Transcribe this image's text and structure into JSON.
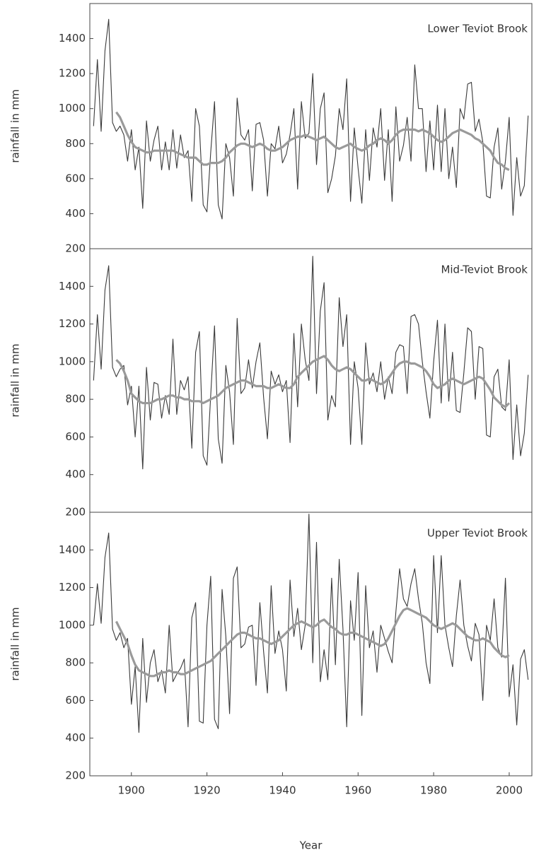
{
  "chart_data": [
    {
      "type": "line",
      "title": "Lower Teviot Brook",
      "ylabel": "rainfall in mm",
      "x": [
        1890,
        1891,
        1892,
        1893,
        1894,
        1895,
        1896,
        1897,
        1898,
        1899,
        1900,
        1901,
        1902,
        1903,
        1904,
        1905,
        1906,
        1907,
        1908,
        1909,
        1910,
        1911,
        1912,
        1913,
        1914,
        1915,
        1916,
        1917,
        1918,
        1919,
        1920,
        1921,
        1922,
        1923,
        1924,
        1925,
        1926,
        1927,
        1928,
        1929,
        1930,
        1931,
        1932,
        1933,
        1934,
        1935,
        1936,
        1937,
        1938,
        1939,
        1940,
        1941,
        1942,
        1943,
        1944,
        1945,
        1946,
        1947,
        1948,
        1949,
        1950,
        1951,
        1952,
        1953,
        1954,
        1955,
        1956,
        1957,
        1958,
        1959,
        1960,
        1961,
        1962,
        1963,
        1964,
        1965,
        1966,
        1967,
        1968,
        1969,
        1970,
        1971,
        1972,
        1973,
        1974,
        1975,
        1976,
        1977,
        1978,
        1979,
        1980,
        1981,
        1982,
        1983,
        1984,
        1985,
        1986,
        1987,
        1988,
        1989,
        1990,
        1991,
        1992,
        1993,
        1994,
        1995,
        1996,
        1997,
        1998,
        1999,
        2000,
        2001,
        2002,
        2003,
        2004,
        2005
      ],
      "series": [
        {
          "color": "#3a3a3a",
          "values": [
            900,
            1280,
            870,
            1330,
            1510,
            920,
            870,
            900,
            850,
            700,
            880,
            650,
            780,
            430,
            930,
            700,
            820,
            900,
            650,
            810,
            650,
            880,
            660,
            850,
            720,
            760,
            470,
            1000,
            900,
            450,
            410,
            750,
            1040,
            450,
            370,
            800,
            720,
            500,
            1060,
            850,
            820,
            880,
            530,
            910,
            920,
            820,
            500,
            800,
            770,
            900,
            690,
            740,
            850,
            1000,
            540,
            1040,
            830,
            860,
            1200,
            680,
            1000,
            1090,
            520,
            600,
            730,
            1000,
            880,
            1170,
            470,
            890,
            660,
            460,
            880,
            590,
            890,
            780,
            1000,
            590,
            880,
            470,
            1010,
            700,
            790,
            950,
            700,
            1250,
            1000,
            1000,
            640,
            930,
            650,
            1020,
            640,
            1000,
            600,
            780,
            550,
            1000,
            940,
            1140,
            1150,
            870,
            940,
            810,
            500,
            490,
            780,
            890,
            540,
            700,
            950,
            390,
            720,
            500,
            560,
            960
          ]
        },
        {
          "color": "#9a9a9a",
          "values": [
            null,
            null,
            null,
            null,
            null,
            null,
            980,
            950,
            900,
            850,
            810,
            780,
            770,
            760,
            750,
            750,
            760,
            760,
            760,
            760,
            760,
            760,
            750,
            740,
            730,
            720,
            720,
            720,
            700,
            680,
            680,
            690,
            690,
            690,
            700,
            720,
            750,
            770,
            790,
            800,
            800,
            790,
            780,
            790,
            800,
            790,
            770,
            760,
            760,
            770,
            780,
            800,
            820,
            830,
            840,
            840,
            850,
            840,
            830,
            820,
            830,
            840,
            820,
            800,
            780,
            770,
            780,
            790,
            800,
            780,
            770,
            760,
            770,
            790,
            800,
            820,
            830,
            820,
            800,
            820,
            850,
            870,
            880,
            880,
            880,
            880,
            870,
            880,
            870,
            860,
            840,
            820,
            810,
            820,
            840,
            860,
            870,
            880,
            870,
            860,
            850,
            830,
            820,
            800,
            780,
            760,
            720,
            690,
            680,
            660,
            650,
            null,
            null,
            null,
            null,
            null
          ]
        }
      ],
      "xlim": [
        1889,
        2006
      ],
      "ylim": [
        200,
        1600
      ],
      "yticks": [
        200,
        400,
        600,
        800,
        1000,
        1200,
        1400
      ]
    },
    {
      "type": "line",
      "title": "Mid-Teviot Brook",
      "ylabel": "rainfall in mm",
      "x": [
        1890,
        1891,
        1892,
        1893,
        1894,
        1895,
        1896,
        1897,
        1898,
        1899,
        1900,
        1901,
        1902,
        1903,
        1904,
        1905,
        1906,
        1907,
        1908,
        1909,
        1910,
        1911,
        1912,
        1913,
        1914,
        1915,
        1916,
        1917,
        1918,
        1919,
        1920,
        1921,
        1922,
        1923,
        1924,
        1925,
        1926,
        1927,
        1928,
        1929,
        1930,
        1931,
        1932,
        1933,
        1934,
        1935,
        1936,
        1937,
        1938,
        1939,
        1940,
        1941,
        1942,
        1943,
        1944,
        1945,
        1946,
        1947,
        1948,
        1949,
        1950,
        1951,
        1952,
        1953,
        1954,
        1955,
        1956,
        1957,
        1958,
        1959,
        1960,
        1961,
        1962,
        1963,
        1964,
        1965,
        1966,
        1967,
        1968,
        1969,
        1970,
        1971,
        1972,
        1973,
        1974,
        1975,
        1976,
        1977,
        1978,
        1979,
        1980,
        1981,
        1982,
        1983,
        1984,
        1985,
        1986,
        1987,
        1988,
        1989,
        1990,
        1991,
        1992,
        1993,
        1994,
        1995,
        1996,
        1997,
        1998,
        1999,
        2000,
        2001,
        2002,
        2003,
        2004,
        2005
      ],
      "series": [
        {
          "color": "#3a3a3a",
          "values": [
            900,
            1250,
            960,
            1380,
            1510,
            970,
            920,
            960,
            980,
            770,
            870,
            600,
            870,
            430,
            970,
            690,
            890,
            880,
            700,
            820,
            720,
            1120,
            720,
            900,
            850,
            920,
            540,
            1050,
            1160,
            500,
            450,
            820,
            1190,
            590,
            460,
            980,
            840,
            560,
            1230,
            830,
            860,
            1010,
            860,
            1000,
            1100,
            810,
            590,
            950,
            880,
            930,
            840,
            900,
            570,
            1150,
            760,
            1200,
            1010,
            900,
            1560,
            830,
            1270,
            1420,
            690,
            820,
            760,
            1340,
            1080,
            1250,
            560,
            1000,
            860,
            560,
            1100,
            880,
            940,
            840,
            1000,
            800,
            920,
            830,
            1050,
            1090,
            1080,
            830,
            1240,
            1250,
            1200,
            1000,
            840,
            700,
            1000,
            1220,
            780,
            1200,
            790,
            1050,
            740,
            730,
            940,
            1180,
            1160,
            800,
            1080,
            1070,
            610,
            600,
            920,
            960,
            760,
            740,
            1010,
            480,
            770,
            500,
            620,
            930
          ]
        },
        {
          "color": "#9a9a9a",
          "values": [
            null,
            null,
            null,
            null,
            null,
            null,
            1010,
            990,
            950,
            900,
            830,
            810,
            790,
            780,
            780,
            780,
            790,
            800,
            800,
            810,
            820,
            820,
            810,
            810,
            800,
            800,
            790,
            790,
            790,
            780,
            790,
            800,
            810,
            820,
            840,
            860,
            870,
            880,
            890,
            900,
            900,
            890,
            880,
            870,
            870,
            870,
            860,
            860,
            870,
            880,
            870,
            860,
            860,
            880,
            920,
            940,
            960,
            980,
            1000,
            1010,
            1020,
            1030,
            1010,
            980,
            960,
            950,
            960,
            970,
            960,
            940,
            920,
            900,
            900,
            910,
            900,
            890,
            880,
            890,
            910,
            940,
            970,
            990,
            1000,
            1000,
            990,
            990,
            980,
            970,
            950,
            920,
            880,
            860,
            870,
            880,
            900,
            910,
            900,
            890,
            880,
            890,
            900,
            910,
            920,
            910,
            880,
            850,
            810,
            790,
            770,
            760,
            780,
            null,
            null,
            null,
            null,
            null
          ]
        }
      ],
      "xlim": [
        1889,
        2006
      ],
      "ylim": [
        200,
        1600
      ],
      "yticks": [
        200,
        400,
        600,
        800,
        1000,
        1200,
        1400
      ]
    },
    {
      "type": "line",
      "title": "Upper Teviot Brook",
      "ylabel": "rainfall in mm",
      "xlabel": "Year",
      "x": [
        1890,
        1891,
        1892,
        1893,
        1894,
        1895,
        1896,
        1897,
        1898,
        1899,
        1900,
        1901,
        1902,
        1903,
        1904,
        1905,
        1906,
        1907,
        1908,
        1909,
        1910,
        1911,
        1912,
        1913,
        1914,
        1915,
        1916,
        1917,
        1918,
        1919,
        1920,
        1921,
        1922,
        1923,
        1924,
        1925,
        1926,
        1927,
        1928,
        1929,
        1930,
        1931,
        1932,
        1933,
        1934,
        1935,
        1936,
        1937,
        1938,
        1939,
        1940,
        1941,
        1942,
        1943,
        1944,
        1945,
        1946,
        1947,
        1948,
        1949,
        1950,
        1951,
        1952,
        1953,
        1954,
        1955,
        1956,
        1957,
        1958,
        1959,
        1960,
        1961,
        1962,
        1963,
        1964,
        1965,
        1966,
        1967,
        1968,
        1969,
        1970,
        1971,
        1972,
        1973,
        1974,
        1975,
        1976,
        1977,
        1978,
        1979,
        1980,
        1981,
        1982,
        1983,
        1984,
        1985,
        1986,
        1987,
        1988,
        1989,
        1990,
        1991,
        1992,
        1993,
        1994,
        1995,
        1996,
        1997,
        1998,
        1999,
        2000,
        2001,
        2002,
        2003,
        2004,
        2005
      ],
      "series": [
        {
          "color": "#3a3a3a",
          "values": [
            1000,
            1220,
            1010,
            1360,
            1490,
            980,
            920,
            960,
            880,
            930,
            580,
            780,
            430,
            930,
            590,
            800,
            870,
            700,
            760,
            640,
            1000,
            700,
            740,
            770,
            820,
            460,
            1040,
            1120,
            490,
            480,
            1000,
            1260,
            500,
            450,
            1190,
            940,
            530,
            1250,
            1310,
            880,
            900,
            990,
            1000,
            680,
            1120,
            860,
            640,
            1210,
            850,
            970,
            870,
            650,
            1240,
            940,
            1090,
            870,
            1000,
            1590,
            800,
            1440,
            700,
            870,
            710,
            1250,
            790,
            1350,
            980,
            460,
            1130,
            920,
            1280,
            520,
            1210,
            880,
            970,
            750,
            1000,
            930,
            860,
            800,
            1070,
            1300,
            1140,
            1100,
            1220,
            1300,
            1140,
            1010,
            800,
            690,
            1370,
            960,
            1370,
            1000,
            880,
            780,
            1050,
            1240,
            1000,
            890,
            810,
            1010,
            950,
            600,
            1000,
            920,
            1140,
            880,
            830,
            1250,
            620,
            790,
            470,
            820,
            870,
            710
          ]
        },
        {
          "color": "#9a9a9a",
          "values": [
            null,
            null,
            null,
            null,
            null,
            null,
            1020,
            980,
            940,
            900,
            840,
            790,
            760,
            750,
            740,
            730,
            730,
            740,
            750,
            750,
            760,
            750,
            750,
            740,
            740,
            750,
            760,
            770,
            780,
            790,
            800,
            810,
            830,
            850,
            870,
            890,
            910,
            930,
            950,
            960,
            960,
            950,
            940,
            930,
            930,
            920,
            910,
            900,
            910,
            920,
            940,
            960,
            980,
            1000,
            1010,
            1020,
            1010,
            1000,
            990,
            1000,
            1020,
            1030,
            1010,
            990,
            980,
            960,
            950,
            950,
            960,
            960,
            950,
            940,
            930,
            920,
            910,
            900,
            890,
            900,
            930,
            970,
            1010,
            1050,
            1080,
            1090,
            1080,
            1070,
            1060,
            1050,
            1040,
            1020,
            1000,
            990,
            980,
            990,
            1000,
            1010,
            1000,
            980,
            960,
            940,
            930,
            920,
            920,
            930,
            920,
            910,
            880,
            860,
            840,
            830,
            840,
            null,
            null,
            null,
            null,
            null
          ]
        }
      ],
      "xlim": [
        1889,
        2006
      ],
      "ylim": [
        200,
        1600
      ],
      "yticks": [
        200,
        400,
        600,
        800,
        1000,
        1200,
        1400
      ],
      "xticks": [
        1900,
        1920,
        1940,
        1960,
        1980,
        2000
      ]
    }
  ]
}
